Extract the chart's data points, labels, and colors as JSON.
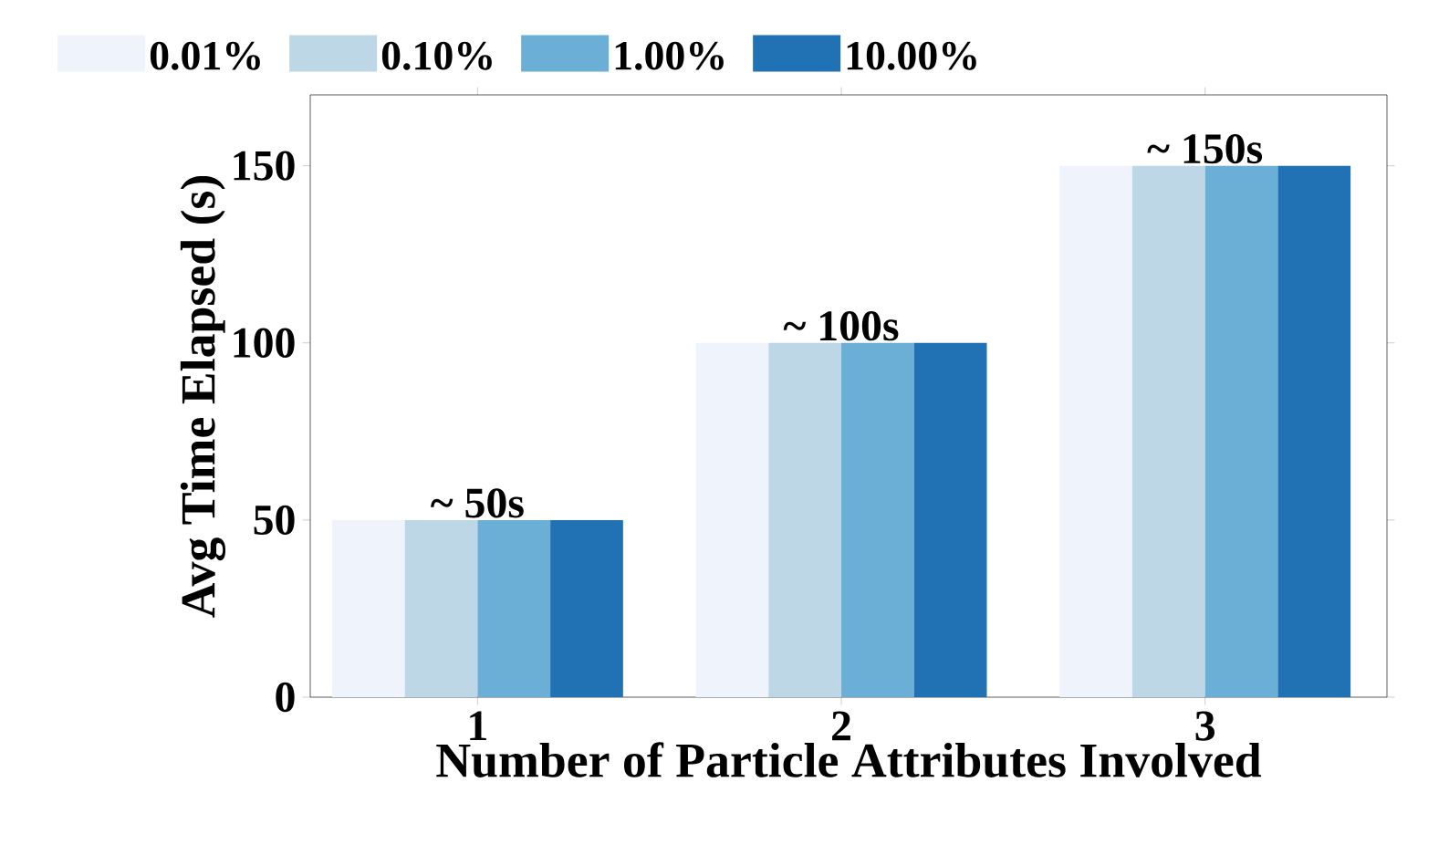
{
  "chart_data": {
    "type": "bar",
    "xlabel": "Number of Particle Attributes Involved",
    "ylabel": "Avg Time Elapsed (s)",
    "categories": [
      "1",
      "2",
      "3"
    ],
    "series": [
      {
        "name": "0.01%",
        "color": "#eef3fc",
        "values": [
          50,
          100,
          150
        ]
      },
      {
        "name": "0.10%",
        "color": "#bdd7e7",
        "values": [
          50,
          100,
          150
        ]
      },
      {
        "name": "1.00%",
        "color": "#6baed6",
        "values": [
          50,
          100,
          150
        ]
      },
      {
        "name": "10.00%",
        "color": "#2171b5",
        "values": [
          50,
          100,
          150
        ]
      }
    ],
    "ylim": [
      0,
      170
    ],
    "yticks": [
      0,
      50,
      100,
      150
    ],
    "grid": false,
    "legend": "top",
    "annotations": [
      {
        "text": "~ 50s",
        "x": "1",
        "y": 50
      },
      {
        "text": "~ 100s",
        "x": "2",
        "y": 100
      },
      {
        "text": "~ 150s",
        "x": "3",
        "y": 150
      }
    ]
  }
}
